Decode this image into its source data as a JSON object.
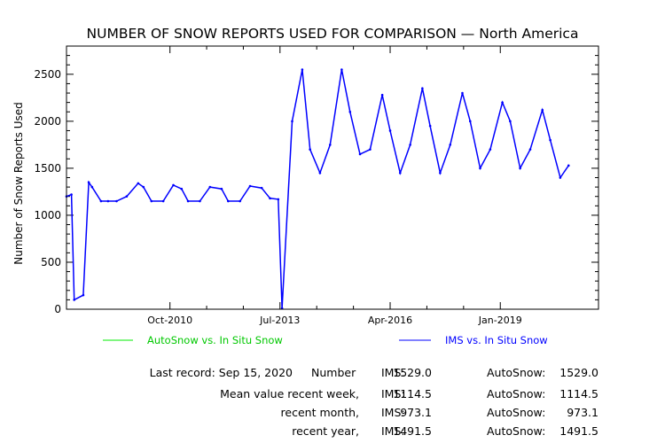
{
  "chart_data": {
    "type": "line",
    "title": "NUMBER OF SNOW REPORTS USED FOR COMPARISON — North America",
    "ylabel": "Number of Snow Reports Used",
    "xlabel": "",
    "ylim": [
      0,
      2800
    ],
    "yticks": [
      0,
      500,
      1000,
      1500,
      2000,
      2500
    ],
    "xlim": [
      "2008-03-01",
      "2021-06-15"
    ],
    "xticks": [
      {
        "label": "Oct-2010",
        "date": "2010-10-01"
      },
      {
        "label": "Jul-2013",
        "date": "2013-07-01"
      },
      {
        "label": "Apr-2016",
        "date": "2016-04-01"
      },
      {
        "label": "Jan-2019",
        "date": "2019-01-01"
      }
    ],
    "grid": false,
    "legend_position": "bottom",
    "series": [
      {
        "name": "AutoSnow vs. In Situ Snow",
        "color": "#00ee00",
        "x": [],
        "y": []
      },
      {
        "name": "IMS vs. In Situ Snow",
        "color": "#0000ff",
        "x": [
          "2008-03-01",
          "2008-04-15",
          "2008-05-10",
          "2008-08-01",
          "2008-09-20",
          "2008-10-20",
          "2009-01-10",
          "2009-03-15",
          "2009-06-01",
          "2009-09-01",
          "2009-12-15",
          "2010-02-01",
          "2010-04-15",
          "2010-08-01",
          "2010-11-01",
          "2011-01-15",
          "2011-03-15",
          "2011-07-01",
          "2011-10-01",
          "2012-01-15",
          "2012-03-15",
          "2012-07-01",
          "2012-10-01",
          "2013-01-15",
          "2013-04-01",
          "2013-06-15",
          "2013-07-20",
          "2013-10-20",
          "2014-01-20",
          "2014-04-01",
          "2014-07-01",
          "2014-10-01",
          "2015-01-15",
          "2015-04-01",
          "2015-07-01",
          "2015-10-01",
          "2016-01-20",
          "2016-04-01",
          "2016-07-01",
          "2016-10-01",
          "2017-01-20",
          "2017-04-01",
          "2017-07-01",
          "2017-10-01",
          "2018-01-20",
          "2018-04-01",
          "2018-07-01",
          "2018-10-01",
          "2019-01-20",
          "2019-04-01",
          "2019-07-01",
          "2019-10-01",
          "2020-01-20",
          "2020-04-01",
          "2020-07-01",
          "2020-09-15"
        ],
        "y": [
          1200,
          1220,
          100,
          150,
          1350,
          1300,
          1150,
          1150,
          1150,
          1200,
          1340,
          1300,
          1150,
          1150,
          1320,
          1280,
          1150,
          1150,
          1300,
          1280,
          1150,
          1150,
          1310,
          1290,
          1180,
          1170,
          10,
          2000,
          2550,
          1700,
          1450,
          1750,
          2550,
          2100,
          1650,
          1700,
          2280,
          1900,
          1450,
          1750,
          2350,
          1950,
          1450,
          1750,
          2300,
          2000,
          1500,
          1700,
          2200,
          2000,
          1500,
          1700,
          2120,
          1800,
          1400,
          1529
        ]
      }
    ]
  },
  "legend": {
    "autosnow_label": "AutoSnow vs. In Situ Snow",
    "ims_label": "IMS vs. In Situ Snow"
  },
  "stats": {
    "last_record": "Last record: Sep 15, 2020",
    "number_label": "Number",
    "mean_label": "Mean value recent week,",
    "month_label": "recent month,",
    "year_label": "recent year,",
    "ims_label": "IMS:",
    "autosnow_label": "AutoSnow:",
    "ims_number": "1529.0",
    "autosnow_number": "1529.0",
    "ims_week": "1114.5",
    "autosnow_week": "1114.5",
    "ims_month": "973.1",
    "autosnow_month": "973.1",
    "ims_year": "1491.5",
    "autosnow_year": "1491.5"
  }
}
